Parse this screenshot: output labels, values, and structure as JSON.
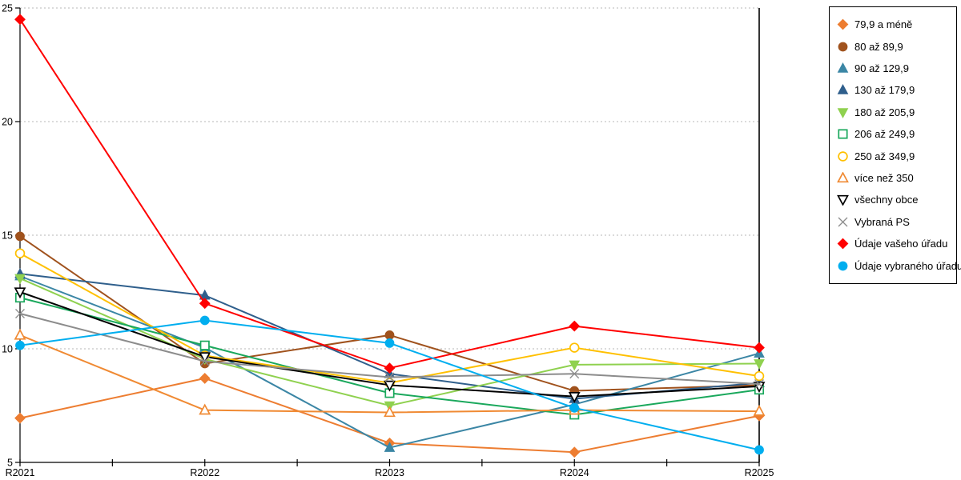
{
  "chart_data": {
    "type": "line",
    "title": "",
    "xlabel": "",
    "ylabel": "",
    "categories": [
      "R2021",
      "R2022",
      "R2023",
      "R2024",
      "R2025"
    ],
    "ylim": [
      5,
      25
    ],
    "yticks": [
      5,
      10,
      15,
      20,
      25
    ],
    "grid": "horizontal-dashed",
    "legend_position": "right-outside-border",
    "series": [
      {
        "name": "79,9 a méně",
        "color": "#ED7D31",
        "marker": "diamond",
        "fill": "solid",
        "values": [
          6.95,
          8.7,
          5.85,
          5.45,
          7.05
        ]
      },
      {
        "name": "80 až 89,9",
        "color": "#A0521D",
        "marker": "circle",
        "fill": "solid",
        "values": [
          14.95,
          9.35,
          10.6,
          8.15,
          8.4
        ]
      },
      {
        "name": "90 až 129,9",
        "color": "#3B86A5",
        "marker": "triangle-up",
        "fill": "solid",
        "values": [
          13.2,
          10.05,
          5.65,
          7.55,
          9.8
        ]
      },
      {
        "name": "130 až 179,9",
        "color": "#2F5F8C",
        "marker": "triangle-up",
        "fill": "solid",
        "values": [
          13.3,
          12.35,
          8.9,
          7.8,
          8.5
        ]
      },
      {
        "name": "180 až 205,9",
        "color": "#8FD14F",
        "marker": "triangle-down",
        "fill": "solid",
        "values": [
          13.1,
          9.55,
          7.5,
          9.3,
          9.35
        ]
      },
      {
        "name": "206 až 249,9",
        "color": "#1AA85C",
        "marker": "square",
        "fill": "open",
        "values": [
          12.25,
          10.15,
          8.05,
          7.1,
          8.2
        ]
      },
      {
        "name": "250 až 349,9",
        "color": "#FFC000",
        "marker": "circle",
        "fill": "open",
        "values": [
          14.2,
          9.7,
          8.5,
          10.05,
          8.8
        ]
      },
      {
        "name": "více než 350",
        "color": "#F08A33",
        "marker": "triangle-up",
        "fill": "open",
        "values": [
          10.6,
          7.3,
          7.2,
          7.3,
          7.25
        ]
      },
      {
        "name": "všechny obce",
        "color": "#000000",
        "marker": "triangle-down",
        "fill": "open",
        "values": [
          12.5,
          9.65,
          8.4,
          7.9,
          8.35
        ]
      },
      {
        "name": "Vybraná PS",
        "color": "#8C8C8C",
        "marker": "x",
        "fill": "line",
        "values": [
          11.55,
          9.45,
          8.75,
          8.9,
          8.45
        ]
      },
      {
        "name": "Údaje vašeho úřadu",
        "color": "#FF0000",
        "marker": "diamond",
        "fill": "solid",
        "values": [
          24.5,
          12.0,
          9.15,
          11.0,
          10.05
        ]
      },
      {
        "name": "Údaje vybraného úřadu",
        "color": "#00AEEF",
        "marker": "circle",
        "fill": "solid",
        "values": [
          10.15,
          11.25,
          10.25,
          7.4,
          5.55
        ]
      }
    ],
    "colors": {
      "axis": "#000000",
      "gridline": "#b7b7b7",
      "background": "#ffffff"
    }
  }
}
